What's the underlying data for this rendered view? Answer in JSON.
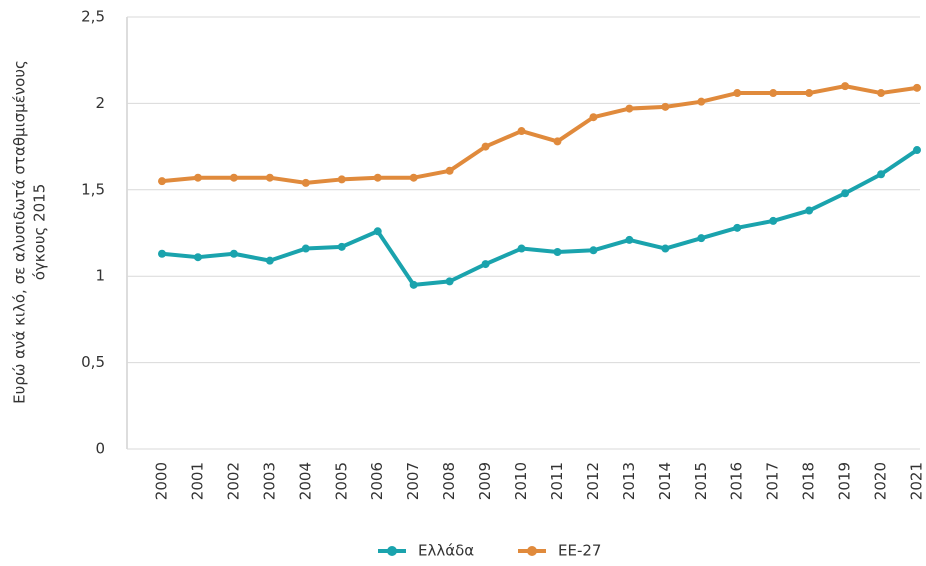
{
  "chart_data": {
    "type": "line",
    "y_label": [
      "Ευρώ ανά κιλό, σε αλυσιδωτά σταθμισμένους",
      "όγκους 2015"
    ],
    "categories": [
      "2000",
      "2001",
      "2002",
      "2003",
      "2004",
      "2005",
      "2006",
      "2007",
      "2008",
      "2009",
      "2010",
      "2011",
      "2012",
      "2013",
      "2014",
      "2015",
      "2016",
      "2017",
      "2018",
      "2019",
      "2020",
      "2021"
    ],
    "series": [
      {
        "name": "Ελλάδα",
        "color": "#1aa3ad",
        "values": [
          1.13,
          1.11,
          1.13,
          1.09,
          1.16,
          1.17,
          1.26,
          0.95,
          0.97,
          1.07,
          1.16,
          1.14,
          1.15,
          1.21,
          1.16,
          1.22,
          1.28,
          1.32,
          1.38,
          1.48,
          1.59,
          1.73
        ]
      },
      {
        "name": "ΕΕ-27",
        "color": "#e08a3c",
        "values": [
          1.55,
          1.57,
          1.57,
          1.57,
          1.54,
          1.56,
          1.57,
          1.57,
          1.61,
          1.75,
          1.84,
          1.78,
          1.92,
          1.97,
          1.98,
          2.01,
          2.06,
          2.06,
          2.06,
          2.1,
          2.06,
          2.09
        ]
      }
    ],
    "ylim": [
      0,
      2.5
    ],
    "yticks": [
      0,
      {
        "value": 0.5,
        "label": "0,5"
      },
      1,
      {
        "value": 1.5,
        "label": "1,5"
      },
      2,
      {
        "value": 2.5,
        "label": "2,5"
      }
    ],
    "grid": true,
    "legend": "bottom"
  }
}
